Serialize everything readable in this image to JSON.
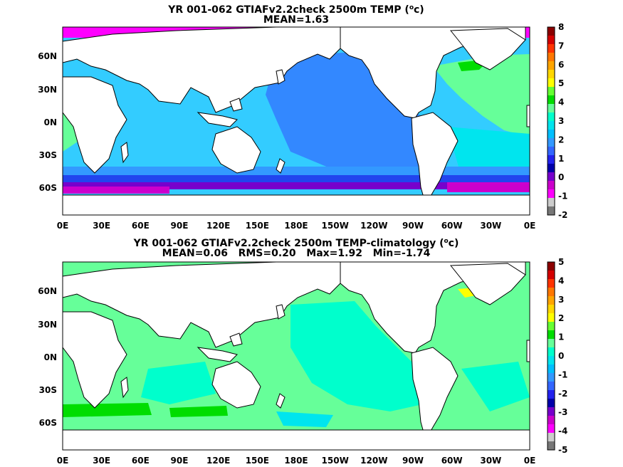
{
  "panels": [
    {
      "id": "mean-temp",
      "title_prefix": "YR 001-062 GTIAFv2.2check 2500m TEMP (",
      "unit_sup": "o",
      "title_suffix": "c)",
      "subtitle": "MEAN=1.63",
      "lat_labels": [
        "60N",
        "30N",
        "0N",
        "30S",
        "60S"
      ],
      "lon_labels": [
        "0E",
        "30E",
        "60E",
        "90E",
        "120E",
        "150E",
        "180E",
        "150W",
        "120W",
        "90W",
        "60W",
        "30W",
        "0E"
      ],
      "colorbar": {
        "labels": [
          "8",
          "7",
          "6",
          "5",
          "4",
          "3",
          "2",
          "1",
          "0",
          "-1",
          "-2"
        ],
        "colors": [
          "#8b0000",
          "#d40000",
          "#ff3300",
          "#ff7700",
          "#ffa500",
          "#ffd700",
          "#ffff00",
          "#66ff33",
          "#00dd00",
          "#66ff99",
          "#00ffcc",
          "#00e5ee",
          "#00bfff",
          "#3399ff",
          "#3366ff",
          "#2222ee",
          "#0000aa",
          "#7700cc",
          "#cc00cc",
          "#ff00ff",
          "#cccccc",
          "#777777"
        ]
      }
    },
    {
      "id": "anomaly",
      "title_prefix": "YR 001-062 GTIAFv2.2check 2500m TEMP-climatology (",
      "unit_sup": "o",
      "title_suffix": "c)",
      "subtitle": "MEAN=0.06   RMS=0.20   Max=1.92   Min=-1.74",
      "lat_labels": [
        "60N",
        "30N",
        "0N",
        "30S",
        "60S"
      ],
      "lon_labels": [
        "0E",
        "30E",
        "60E",
        "90E",
        "120E",
        "150E",
        "180E",
        "150W",
        "120W",
        "90W",
        "60W",
        "30W",
        "0E"
      ],
      "colorbar": {
        "labels": [
          "5",
          "4",
          "3",
          "2",
          "1",
          "0",
          "-1",
          "-2",
          "-3",
          "-4",
          "-5"
        ],
        "colors": [
          "#8b0000",
          "#d40000",
          "#ff3300",
          "#ff7700",
          "#ffa500",
          "#ffd700",
          "#ffff00",
          "#66ff33",
          "#00dd00",
          "#66ff99",
          "#00ffcc",
          "#00e5ee",
          "#00bfff",
          "#3399ff",
          "#3366ff",
          "#2222ee",
          "#0000aa",
          "#7700cc",
          "#cc00cc",
          "#ff00ff",
          "#cccccc",
          "#777777"
        ]
      }
    }
  ]
}
